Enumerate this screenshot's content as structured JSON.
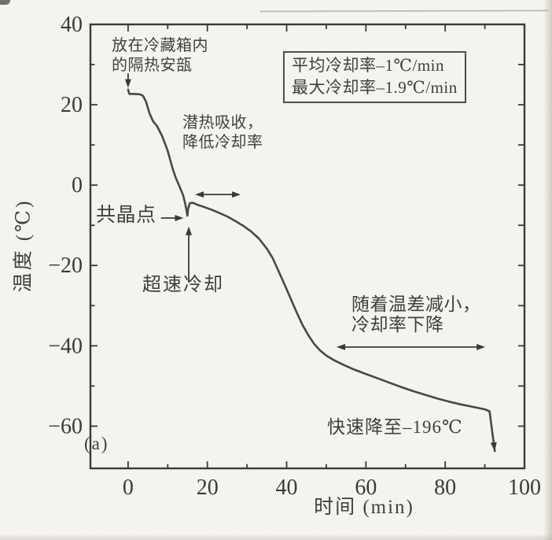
{
  "colors": {
    "paper": "#f5f3ee",
    "ink": "#3a3a3a",
    "curve": "#474747"
  },
  "chart_data": {
    "type": "line",
    "title": "",
    "xlabel": "时间 (min)",
    "ylabel": "温度 (℃)",
    "xlim": [
      -9.5,
      100
    ],
    "ylim": [
      -70.5,
      40
    ],
    "x_major_ticks": [
      0,
      20,
      40,
      60,
      80,
      100
    ],
    "x_tick_labels": [
      "0",
      "20",
      "40",
      "60",
      "80",
      "100"
    ],
    "y_major_ticks": [
      40,
      20,
      0,
      -20,
      -40,
      -60
    ],
    "y_tick_labels": [
      "40",
      "20",
      "0",
      "−20",
      "−40",
      "−60"
    ],
    "minor_tick_step": 10,
    "grid": false,
    "frame": true,
    "legend_position": "none",
    "series": [
      {
        "name": "cooling-curve",
        "end_marker": "arrow",
        "points": [
          [
            0,
            23.8
          ],
          [
            0.3,
            22.7
          ],
          [
            1.5,
            22.7
          ],
          [
            3,
            22.6
          ],
          [
            3.8,
            22.2
          ],
          [
            4.5,
            20.8
          ],
          [
            5.4,
            17.9
          ],
          [
            6.3,
            15.9
          ],
          [
            7.3,
            14.7
          ],
          [
            8.6,
            12.2
          ],
          [
            9.9,
            8.8
          ],
          [
            10.6,
            6.4
          ],
          [
            11.3,
            3.9
          ],
          [
            12,
            1.9
          ],
          [
            12.7,
            0.3
          ],
          [
            13.3,
            -1.1
          ],
          [
            13.9,
            -2.6
          ],
          [
            14.4,
            -4.6
          ],
          [
            14.75,
            -6.3
          ],
          [
            14.95,
            -7.6
          ],
          [
            15.15,
            -5.8
          ],
          [
            15.6,
            -4.5
          ],
          [
            16.3,
            -4.4
          ],
          [
            17.5,
            -4.9
          ],
          [
            19,
            -5.4
          ],
          [
            21,
            -6.1
          ],
          [
            23,
            -6.9
          ],
          [
            25,
            -7.8
          ],
          [
            27,
            -8.9
          ],
          [
            29,
            -10.1
          ],
          [
            31,
            -11.5
          ],
          [
            33,
            -13.3
          ],
          [
            35,
            -15.8
          ],
          [
            36.5,
            -18.2
          ],
          [
            38,
            -21.5
          ],
          [
            39.5,
            -24.8
          ],
          [
            41,
            -28.2
          ],
          [
            42.5,
            -31.6
          ],
          [
            44,
            -34.8
          ],
          [
            45.5,
            -37.4
          ],
          [
            47,
            -39.6
          ],
          [
            48.5,
            -41.2
          ],
          [
            50,
            -42.4
          ],
          [
            52,
            -43.6
          ],
          [
            54.5,
            -44.8
          ],
          [
            57,
            -45.9
          ],
          [
            60,
            -47
          ],
          [
            63,
            -48.1
          ],
          [
            66,
            -49.2
          ],
          [
            69,
            -50.3
          ],
          [
            72,
            -51.3
          ],
          [
            75,
            -52.2
          ],
          [
            78,
            -53.1
          ],
          [
            81,
            -53.9
          ],
          [
            84,
            -54.6
          ],
          [
            87,
            -55.2
          ],
          [
            90,
            -55.8
          ],
          [
            91.2,
            -56.3
          ],
          [
            92.5,
            -66.2
          ]
        ]
      }
    ],
    "annotations": {
      "ampoule": "放在冷藏箱内\n的隔热安瓿",
      "stats_line1": "平均冷却率–1℃/min",
      "stats_line2": "最大冷却率–1.9℃/min",
      "latent": "潜热吸收，\n降低冷却率",
      "eutectic": "共晶点",
      "supercool": "超速冷却",
      "tempdiff": "随着温差减小，\n冷却率下降",
      "rapid": "快速降至–196℃",
      "panel": "(a)"
    },
    "arrows": [
      {
        "name": "ampoule-pointer-arrow",
        "from": [
          0,
          27.8
        ],
        "to": [
          0,
          24.2
        ],
        "heads": "end"
      },
      {
        "name": "eutectic-pointer-arrow",
        "from": [
          8.3,
          -8.2
        ],
        "to": [
          14,
          -8.2
        ],
        "heads": "end"
      },
      {
        "name": "supercool-pointer-arrow",
        "from": [
          15.3,
          -24.2
        ],
        "to": [
          15.3,
          -10.3
        ],
        "heads": "end"
      },
      {
        "name": "latent-span-arrow",
        "from": [
          16.9,
          -2.35
        ],
        "to": [
          28.4,
          -2.35
        ],
        "heads": "both"
      },
      {
        "name": "tempdiff-span-arrow",
        "from": [
          52.6,
          -40.3
        ],
        "to": [
          90.1,
          -40.3
        ],
        "heads": "both"
      }
    ]
  }
}
